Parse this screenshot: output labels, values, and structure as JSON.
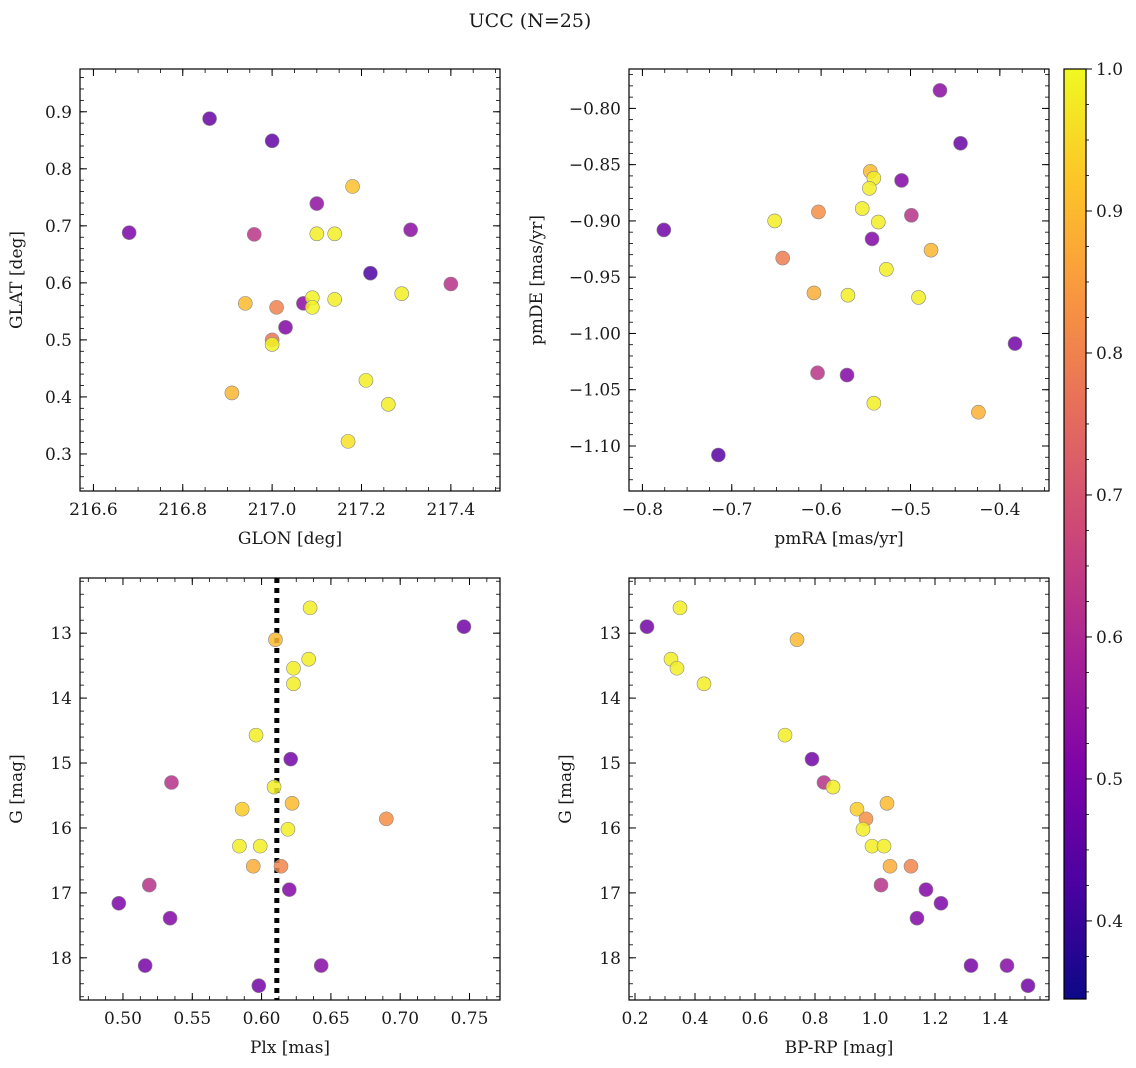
{
  "title": "UCC (N=25)",
  "colorbar": {
    "min": 0.345,
    "max": 1.0,
    "ticks": [
      0.4,
      0.5,
      0.6,
      0.7,
      0.8,
      0.9,
      1.0
    ],
    "tick_labels": [
      "0.4",
      "0.5",
      "0.6",
      "0.7",
      "0.8",
      "0.9",
      "1.0"
    ],
    "colormap": "plasma"
  },
  "chart_data": [
    {
      "type": "scatter",
      "xlabel": "GLON [deg]",
      "ylabel": "GLAT [deg]",
      "xlim": [
        216.57,
        217.51
      ],
      "ylim": [
        0.235,
        0.975
      ],
      "y_inverted": false,
      "xticks": [
        216.6,
        216.8,
        217.0,
        217.2,
        217.4
      ],
      "xtick_labels": [
        "216.6",
        "216.8",
        "217.0",
        "217.2",
        "217.4"
      ],
      "yticks": [
        0.3,
        0.4,
        0.5,
        0.6,
        0.7,
        0.8,
        0.9
      ],
      "ytick_labels": [
        "0.3",
        "0.4",
        "0.5",
        "0.6",
        "0.7",
        "0.8",
        "0.9"
      ],
      "points": [
        {
          "x": 216.86,
          "y": 0.888,
          "c": 0.4
        },
        {
          "x": 217.0,
          "y": 0.849,
          "c": 0.39
        },
        {
          "x": 216.68,
          "y": 0.688,
          "c": 0.44
        },
        {
          "x": 217.18,
          "y": 0.769,
          "c": 0.9
        },
        {
          "x": 217.1,
          "y": 0.739,
          "c": 0.48
        },
        {
          "x": 216.96,
          "y": 0.685,
          "c": 0.58
        },
        {
          "x": 217.1,
          "y": 0.686,
          "c": 0.98
        },
        {
          "x": 217.14,
          "y": 0.686,
          "c": 0.98
        },
        {
          "x": 217.31,
          "y": 0.693,
          "c": 0.47
        },
        {
          "x": 217.22,
          "y": 0.617,
          "c": 0.35
        },
        {
          "x": 217.4,
          "y": 0.598,
          "c": 0.57
        },
        {
          "x": 217.07,
          "y": 0.564,
          "c": 0.47
        },
        {
          "x": 217.09,
          "y": 0.574,
          "c": 0.99
        },
        {
          "x": 217.09,
          "y": 0.557,
          "c": 0.99
        },
        {
          "x": 217.14,
          "y": 0.571,
          "c": 0.98
        },
        {
          "x": 216.94,
          "y": 0.564,
          "c": 0.89
        },
        {
          "x": 217.01,
          "y": 0.557,
          "c": 0.77
        },
        {
          "x": 217.29,
          "y": 0.581,
          "c": 0.98
        },
        {
          "x": 217.03,
          "y": 0.522,
          "c": 0.45
        },
        {
          "x": 217.0,
          "y": 0.5,
          "c": 0.74
        },
        {
          "x": 217.0,
          "y": 0.492,
          "c": 0.99
        },
        {
          "x": 216.91,
          "y": 0.407,
          "c": 0.88
        },
        {
          "x": 217.21,
          "y": 0.429,
          "c": 0.98
        },
        {
          "x": 217.26,
          "y": 0.387,
          "c": 0.98
        },
        {
          "x": 217.17,
          "y": 0.322,
          "c": 0.96
        }
      ]
    },
    {
      "type": "scatter",
      "xlabel": "pmRA [mas/yr]",
      "ylabel": "pmDE [mas/yr]",
      "xlim": [
        -0.815,
        -0.345
      ],
      "ylim": [
        -1.14,
        -0.765
      ],
      "y_inverted": false,
      "xticks": [
        -0.8,
        -0.7,
        -0.6,
        -0.5,
        -0.4
      ],
      "xtick_labels": [
        "−0.8",
        "−0.7",
        "−0.6",
        "−0.5",
        "−0.4"
      ],
      "yticks": [
        -1.1,
        -1.05,
        -1.0,
        -0.95,
        -0.9,
        -0.85,
        -0.8
      ],
      "ytick_labels": [
        "−1.10",
        "−1.05",
        "−1.00",
        "−0.95",
        "−0.90",
        "−0.85",
        "−0.80"
      ],
      "points": [
        {
          "x": -0.467,
          "y": -0.784,
          "c": 0.47
        },
        {
          "x": -0.444,
          "y": -0.831,
          "c": 0.4
        },
        {
          "x": -0.545,
          "y": -0.856,
          "c": 0.89
        },
        {
          "x": -0.541,
          "y": -0.862,
          "c": 0.98
        },
        {
          "x": -0.546,
          "y": -0.871,
          "c": 0.98
        },
        {
          "x": -0.51,
          "y": -0.864,
          "c": 0.45
        },
        {
          "x": -0.554,
          "y": -0.889,
          "c": 0.98
        },
        {
          "x": -0.603,
          "y": -0.892,
          "c": 0.8
        },
        {
          "x": -0.499,
          "y": -0.895,
          "c": 0.57
        },
        {
          "x": -0.652,
          "y": -0.9,
          "c": 0.98
        },
        {
          "x": -0.536,
          "y": -0.901,
          "c": 0.98
        },
        {
          "x": -0.776,
          "y": -0.908,
          "c": 0.41
        },
        {
          "x": -0.543,
          "y": -0.916,
          "c": 0.45
        },
        {
          "x": -0.477,
          "y": -0.926,
          "c": 0.88
        },
        {
          "x": -0.643,
          "y": -0.933,
          "c": 0.76
        },
        {
          "x": -0.527,
          "y": -0.943,
          "c": 0.98
        },
        {
          "x": -0.608,
          "y": -0.964,
          "c": 0.86
        },
        {
          "x": -0.57,
          "y": -0.966,
          "c": 0.98
        },
        {
          "x": -0.491,
          "y": -0.968,
          "c": 0.98
        },
        {
          "x": -0.383,
          "y": -1.009,
          "c": 0.42
        },
        {
          "x": -0.604,
          "y": -1.035,
          "c": 0.58
        },
        {
          "x": -0.571,
          "y": -1.037,
          "c": 0.45
        },
        {
          "x": -0.541,
          "y": -1.062,
          "c": 0.98
        },
        {
          "x": -0.424,
          "y": -1.07,
          "c": 0.87
        },
        {
          "x": -0.715,
          "y": -1.108,
          "c": 0.37
        }
      ]
    },
    {
      "type": "scatter",
      "xlabel": "Plx [mas]",
      "ylabel": "G [mag]",
      "xlim": [
        0.469,
        0.772
      ],
      "ylim": [
        18.65,
        12.15
      ],
      "y_inverted": true,
      "xticks": [
        0.5,
        0.55,
        0.6,
        0.65,
        0.7,
        0.75
      ],
      "xtick_labels": [
        "0.50",
        "0.55",
        "0.60",
        "0.65",
        "0.70",
        "0.75"
      ],
      "yticks": [
        13,
        14,
        15,
        16,
        17,
        18
      ],
      "ytick_labels": [
        "13",
        "14",
        "15",
        "16",
        "17",
        "18"
      ],
      "vline": {
        "x": 0.611,
        "style": "dotted",
        "color": "#000000"
      },
      "points": [
        {
          "x": 0.635,
          "y": 12.61,
          "c": 0.98
        },
        {
          "x": 0.746,
          "y": 12.9,
          "c": 0.42
        },
        {
          "x": 0.61,
          "y": 13.1,
          "c": 0.89
        },
        {
          "x": 0.634,
          "y": 13.4,
          "c": 0.98
        },
        {
          "x": 0.623,
          "y": 13.54,
          "c": 0.98
        },
        {
          "x": 0.623,
          "y": 13.78,
          "c": 0.98
        },
        {
          "x": 0.596,
          "y": 14.57,
          "c": 0.98
        },
        {
          "x": 0.621,
          "y": 14.94,
          "c": 0.42
        },
        {
          "x": 0.535,
          "y": 15.3,
          "c": 0.57
        },
        {
          "x": 0.609,
          "y": 15.37,
          "c": 0.98
        },
        {
          "x": 0.586,
          "y": 15.71,
          "c": 0.92
        },
        {
          "x": 0.622,
          "y": 15.62,
          "c": 0.89
        },
        {
          "x": 0.69,
          "y": 15.86,
          "c": 0.8
        },
        {
          "x": 0.619,
          "y": 16.02,
          "c": 0.98
        },
        {
          "x": 0.584,
          "y": 16.28,
          "c": 0.98
        },
        {
          "x": 0.599,
          "y": 16.28,
          "c": 0.98
        },
        {
          "x": 0.594,
          "y": 16.59,
          "c": 0.86
        },
        {
          "x": 0.614,
          "y": 16.59,
          "c": 0.78
        },
        {
          "x": 0.519,
          "y": 16.88,
          "c": 0.57
        },
        {
          "x": 0.62,
          "y": 16.95,
          "c": 0.45
        },
        {
          "x": 0.497,
          "y": 17.16,
          "c": 0.44
        },
        {
          "x": 0.534,
          "y": 17.39,
          "c": 0.45
        },
        {
          "x": 0.516,
          "y": 18.12,
          "c": 0.43
        },
        {
          "x": 0.643,
          "y": 18.12,
          "c": 0.46
        },
        {
          "x": 0.598,
          "y": 18.43,
          "c": 0.42
        }
      ]
    },
    {
      "type": "scatter",
      "xlabel": "BP-RP [mag]",
      "ylabel": "G [mag]",
      "xlim": [
        0.18,
        1.58
      ],
      "ylim": [
        18.65,
        12.15
      ],
      "y_inverted": true,
      "xticks": [
        0.2,
        0.4,
        0.6,
        0.8,
        1.0,
        1.2,
        1.4
      ],
      "xtick_labels": [
        "0.2",
        "0.4",
        "0.6",
        "0.8",
        "1.0",
        "1.2",
        "1.4"
      ],
      "yticks": [
        13,
        14,
        15,
        16,
        17,
        18
      ],
      "ytick_labels": [
        "13",
        "14",
        "15",
        "16",
        "17",
        "18"
      ],
      "points": [
        {
          "x": 0.24,
          "y": 12.9,
          "c": 0.42
        },
        {
          "x": 0.35,
          "y": 12.61,
          "c": 0.98
        },
        {
          "x": 0.74,
          "y": 13.1,
          "c": 0.89
        },
        {
          "x": 0.32,
          "y": 13.4,
          "c": 0.98
        },
        {
          "x": 0.34,
          "y": 13.54,
          "c": 0.98
        },
        {
          "x": 0.43,
          "y": 13.78,
          "c": 0.98
        },
        {
          "x": 0.7,
          "y": 14.57,
          "c": 0.98
        },
        {
          "x": 0.79,
          "y": 14.94,
          "c": 0.42
        },
        {
          "x": 0.83,
          "y": 15.3,
          "c": 0.57
        },
        {
          "x": 0.86,
          "y": 15.37,
          "c": 0.98
        },
        {
          "x": 0.94,
          "y": 15.71,
          "c": 0.92
        },
        {
          "x": 1.04,
          "y": 15.62,
          "c": 0.89
        },
        {
          "x": 0.97,
          "y": 15.86,
          "c": 0.8
        },
        {
          "x": 0.96,
          "y": 16.02,
          "c": 0.98
        },
        {
          "x": 0.99,
          "y": 16.28,
          "c": 0.98
        },
        {
          "x": 1.03,
          "y": 16.28,
          "c": 0.98
        },
        {
          "x": 1.05,
          "y": 16.59,
          "c": 0.86
        },
        {
          "x": 1.12,
          "y": 16.59,
          "c": 0.78
        },
        {
          "x": 1.02,
          "y": 16.88,
          "c": 0.57
        },
        {
          "x": 1.17,
          "y": 16.95,
          "c": 0.45
        },
        {
          "x": 1.22,
          "y": 17.16,
          "c": 0.44
        },
        {
          "x": 1.14,
          "y": 17.39,
          "c": 0.45
        },
        {
          "x": 1.32,
          "y": 18.12,
          "c": 0.43
        },
        {
          "x": 1.44,
          "y": 18.12,
          "c": 0.46
        },
        {
          "x": 1.51,
          "y": 18.43,
          "c": 0.42
        }
      ]
    }
  ]
}
